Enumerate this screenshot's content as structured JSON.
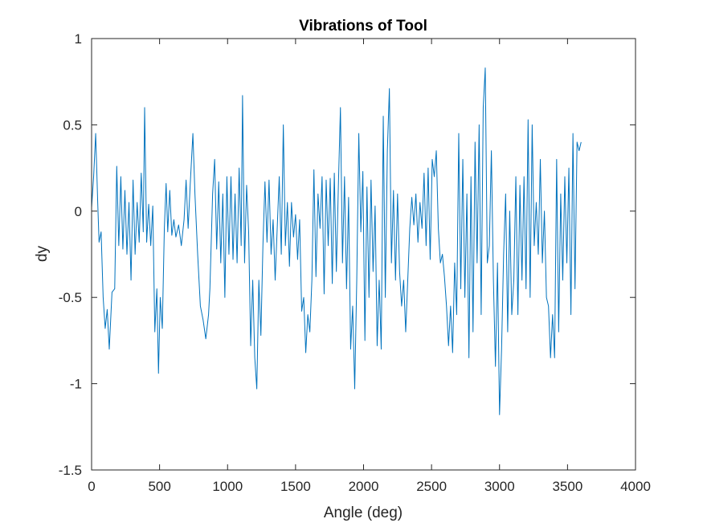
{
  "chart_data": {
    "type": "line",
    "title": "Vibrations of Tool",
    "xlabel": "Angle (deg)",
    "ylabel": "dy",
    "xlim": [
      0,
      4000
    ],
    "ylim": [
      -1.5,
      1
    ],
    "xticks": [
      0,
      500,
      1000,
      1500,
      2000,
      2500,
      3000,
      3500,
      4000
    ],
    "xtick_labels": [
      "0",
      "500",
      "1000",
      "1500",
      "2000",
      "2500",
      "3000",
      "3500",
      "4000"
    ],
    "yticks": [
      -1.5,
      -1,
      -0.5,
      0,
      0.5,
      1
    ],
    "ytick_labels": [
      "-1.5",
      "-1",
      "-0.5",
      "0",
      "0.5",
      "1"
    ],
    "grid": false,
    "legend": "none",
    "series": [
      {
        "color": "#0072BD",
        "points": [
          [
            0,
            0.02
          ],
          [
            15,
            0.2
          ],
          [
            30,
            0.45
          ],
          [
            45,
            0.05
          ],
          [
            55,
            -0.18
          ],
          [
            70,
            -0.12
          ],
          [
            85,
            -0.5
          ],
          [
            100,
            -0.68
          ],
          [
            115,
            -0.57
          ],
          [
            130,
            -0.8
          ],
          [
            150,
            -0.47
          ],
          [
            170,
            -0.45
          ],
          [
            185,
            0.26
          ],
          [
            200,
            -0.2
          ],
          [
            215,
            0.2
          ],
          [
            230,
            -0.22
          ],
          [
            245,
            0.12
          ],
          [
            260,
            -0.25
          ],
          [
            275,
            0.05
          ],
          [
            290,
            -0.4
          ],
          [
            305,
            0.18
          ],
          [
            320,
            -0.25
          ],
          [
            335,
            0.05
          ],
          [
            350,
            -0.18
          ],
          [
            365,
            0.22
          ],
          [
            380,
            -0.12
          ],
          [
            390,
            0.6
          ],
          [
            405,
            -0.18
          ],
          [
            420,
            0.04
          ],
          [
            435,
            -0.2
          ],
          [
            450,
            0.03
          ],
          [
            465,
            -0.7
          ],
          [
            480,
            -0.45
          ],
          [
            492,
            -0.94
          ],
          [
            505,
            -0.5
          ],
          [
            520,
            -0.68
          ],
          [
            535,
            -0.1
          ],
          [
            548,
            0.16
          ],
          [
            560,
            -0.12
          ],
          [
            575,
            0.12
          ],
          [
            590,
            -0.14
          ],
          [
            605,
            -0.05
          ],
          [
            620,
            -0.15
          ],
          [
            640,
            -0.08
          ],
          [
            660,
            -0.2
          ],
          [
            680,
            -0.05
          ],
          [
            695,
            0.18
          ],
          [
            710,
            -0.1
          ],
          [
            725,
            0.15
          ],
          [
            745,
            0.45
          ],
          [
            760,
            0.1
          ],
          [
            780,
            -0.25
          ],
          [
            800,
            -0.55
          ],
          [
            820,
            -0.63
          ],
          [
            840,
            -0.74
          ],
          [
            860,
            -0.6
          ],
          [
            870,
            -0.45
          ],
          [
            890,
            0.1
          ],
          [
            905,
            0.3
          ],
          [
            920,
            -0.22
          ],
          [
            935,
            0.17
          ],
          [
            950,
            -0.3
          ],
          [
            965,
            0.1
          ],
          [
            980,
            -0.5
          ],
          [
            995,
            0.2
          ],
          [
            1010,
            -0.25
          ],
          [
            1025,
            0.2
          ],
          [
            1040,
            -0.28
          ],
          [
            1055,
            0.1
          ],
          [
            1070,
            -0.3
          ],
          [
            1085,
            0.25
          ],
          [
            1100,
            -0.2
          ],
          [
            1110,
            0.67
          ],
          [
            1125,
            -0.3
          ],
          [
            1140,
            0.15
          ],
          [
            1155,
            -0.12
          ],
          [
            1170,
            -0.78
          ],
          [
            1185,
            -0.4
          ],
          [
            1200,
            -0.85
          ],
          [
            1215,
            -1.03
          ],
          [
            1230,
            -0.4
          ],
          [
            1245,
            -0.72
          ],
          [
            1260,
            -0.2
          ],
          [
            1275,
            0.17
          ],
          [
            1290,
            -0.18
          ],
          [
            1305,
            0.18
          ],
          [
            1320,
            -0.25
          ],
          [
            1335,
            -0.05
          ],
          [
            1350,
            -0.4
          ],
          [
            1365,
            -0.1
          ],
          [
            1380,
            0.2
          ],
          [
            1395,
            -0.25
          ],
          [
            1410,
            0.5
          ],
          [
            1425,
            -0.2
          ],
          [
            1440,
            0.05
          ],
          [
            1455,
            -0.32
          ],
          [
            1470,
            0.05
          ],
          [
            1485,
            -0.15
          ],
          [
            1500,
            -0.02
          ],
          [
            1515,
            -0.28
          ],
          [
            1530,
            -0.05
          ],
          [
            1545,
            -0.58
          ],
          [
            1560,
            -0.5
          ],
          [
            1575,
            -0.82
          ],
          [
            1590,
            -0.6
          ],
          [
            1605,
            -0.7
          ],
          [
            1620,
            -0.4
          ],
          [
            1635,
            0.24
          ],
          [
            1650,
            -0.38
          ],
          [
            1665,
            0.1
          ],
          [
            1680,
            -0.1
          ],
          [
            1695,
            0.2
          ],
          [
            1710,
            -0.48
          ],
          [
            1725,
            0.18
          ],
          [
            1740,
            -0.2
          ],
          [
            1755,
            0.19
          ],
          [
            1770,
            -0.42
          ],
          [
            1785,
            0.22
          ],
          [
            1800,
            -0.35
          ],
          [
            1815,
            0.15
          ],
          [
            1830,
            0.6
          ],
          [
            1845,
            -0.3
          ],
          [
            1860,
            0.2
          ],
          [
            1875,
            -0.45
          ],
          [
            1890,
            0.08
          ],
          [
            1905,
            -0.8
          ],
          [
            1920,
            -0.55
          ],
          [
            1935,
            -1.03
          ],
          [
            1950,
            -0.4
          ],
          [
            1965,
            0.45
          ],
          [
            1980,
            -0.12
          ],
          [
            1995,
            0.23
          ],
          [
            2010,
            -0.75
          ],
          [
            2025,
            0.14
          ],
          [
            2040,
            -0.5
          ],
          [
            2055,
            0.18
          ],
          [
            2070,
            -0.35
          ],
          [
            2085,
            0.03
          ],
          [
            2100,
            -0.78
          ],
          [
            2115,
            -0.4
          ],
          [
            2130,
            -0.8
          ],
          [
            2145,
            0.55
          ],
          [
            2160,
            -0.5
          ],
          [
            2175,
            0.35
          ],
          [
            2190,
            0.71
          ],
          [
            2205,
            -0.3
          ],
          [
            2220,
            0.12
          ],
          [
            2235,
            -0.4
          ],
          [
            2250,
            0.1
          ],
          [
            2265,
            -0.35
          ],
          [
            2280,
            -0.55
          ],
          [
            2295,
            -0.4
          ],
          [
            2310,
            -0.7
          ],
          [
            2325,
            -0.4
          ],
          [
            2340,
            -0.1
          ],
          [
            2355,
            0.08
          ],
          [
            2370,
            -0.08
          ],
          [
            2385,
            0.1
          ],
          [
            2400,
            -0.18
          ],
          [
            2415,
            0.05
          ],
          [
            2430,
            -0.1
          ],
          [
            2445,
            0.22
          ],
          [
            2460,
            -0.2
          ],
          [
            2475,
            0.25
          ],
          [
            2490,
            -0.28
          ],
          [
            2505,
            0.3
          ],
          [
            2520,
            0.2
          ],
          [
            2535,
            0.35
          ],
          [
            2550,
            -0.1
          ],
          [
            2565,
            -0.3
          ],
          [
            2580,
            -0.25
          ],
          [
            2595,
            -0.38
          ],
          [
            2610,
            -0.55
          ],
          [
            2625,
            -0.78
          ],
          [
            2640,
            -0.55
          ],
          [
            2655,
            -0.82
          ],
          [
            2670,
            -0.3
          ],
          [
            2685,
            -0.6
          ],
          [
            2700,
            0.45
          ],
          [
            2715,
            -0.45
          ],
          [
            2730,
            0.3
          ],
          [
            2745,
            -0.5
          ],
          [
            2760,
            0.1
          ],
          [
            2775,
            -0.85
          ],
          [
            2790,
            0.2
          ],
          [
            2805,
            -0.7
          ],
          [
            2820,
            0.4
          ],
          [
            2835,
            -0.3
          ],
          [
            2850,
            0.5
          ],
          [
            2865,
            -0.6
          ],
          [
            2880,
            0.6
          ],
          [
            2895,
            0.83
          ],
          [
            2910,
            -0.3
          ],
          [
            2925,
            -0.2
          ],
          [
            2940,
            0.35
          ],
          [
            2955,
            -0.4
          ],
          [
            2970,
            -0.9
          ],
          [
            2985,
            -0.3
          ],
          [
            3000,
            -1.18
          ],
          [
            3015,
            -0.8
          ],
          [
            3030,
            -0.25
          ],
          [
            3045,
            0.1
          ],
          [
            3060,
            -0.7
          ],
          [
            3075,
            0.0
          ],
          [
            3090,
            -0.6
          ],
          [
            3105,
            -0.4
          ],
          [
            3120,
            0.2
          ],
          [
            3135,
            -0.6
          ],
          [
            3150,
            0.15
          ],
          [
            3165,
            -0.4
          ],
          [
            3180,
            0.2
          ],
          [
            3195,
            -0.45
          ],
          [
            3210,
            0.53
          ],
          [
            3225,
            -0.5
          ],
          [
            3240,
            0.5
          ],
          [
            3255,
            -0.2
          ],
          [
            3270,
            0.05
          ],
          [
            3285,
            -0.25
          ],
          [
            3300,
            0.3
          ],
          [
            3315,
            -0.3
          ],
          [
            3330,
            0.0
          ],
          [
            3345,
            -0.5
          ],
          [
            3360,
            -0.55
          ],
          [
            3375,
            -0.85
          ],
          [
            3390,
            -0.6
          ],
          [
            3405,
            -0.85
          ],
          [
            3420,
            0.3
          ],
          [
            3435,
            -0.7
          ],
          [
            3450,
            0.1
          ],
          [
            3465,
            -0.4
          ],
          [
            3480,
            0.2
          ],
          [
            3495,
            -0.3
          ],
          [
            3510,
            0.25
          ],
          [
            3525,
            -0.6
          ],
          [
            3540,
            0.45
          ],
          [
            3555,
            -0.45
          ],
          [
            3570,
            0.4
          ],
          [
            3585,
            0.35
          ],
          [
            3600,
            0.4
          ]
        ]
      }
    ]
  }
}
